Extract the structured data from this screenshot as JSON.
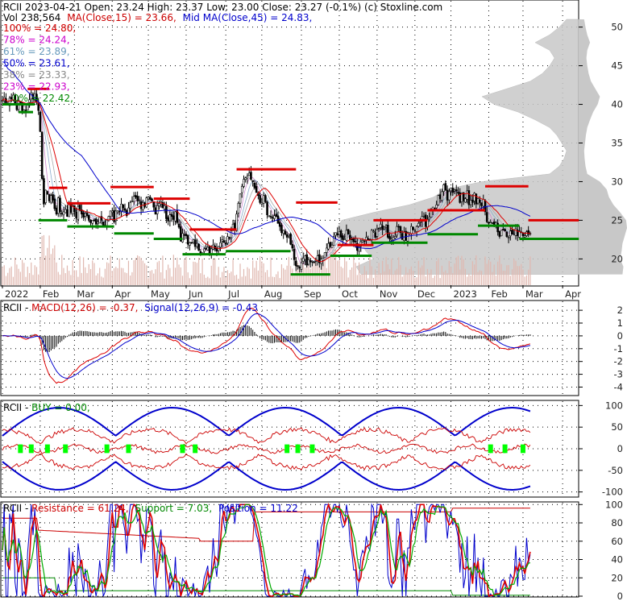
{
  "chart_data": {
    "type": "financial-panels",
    "main": {
      "header_line1": "RCII  2023-04-21 Open: 23.24  High: 23.37  Low: 23.00  Close: 23.27 (-0.1%) (c) Stoxline.com",
      "vol_text": "Vol 238,564",
      "ma15_text": "MA(Close,15) = 23.66,",
      "ma45_text": "Mid MA(Close,45) = 24.83,",
      "fib_levels": [
        {
          "label": "100% = 24.80,",
          "color": "#d40000"
        },
        {
          "label": "78% = 24.24,",
          "color": "#cc00cc"
        },
        {
          "label": "61% = 23.89,",
          "color": "#6699bb"
        },
        {
          "label": "50% = 23.61,",
          "color": "#0000cc"
        },
        {
          "label": "38% = 23.33,",
          "color": "#888888"
        },
        {
          "label": "23% = 22.93,",
          "color": "#cc00cc"
        },
        {
          "label": "0% = 22.42,",
          "color": "#008800"
        }
      ],
      "ylim": [
        16.6,
        53.4
      ],
      "y_ticks": [
        20,
        25,
        30,
        35,
        40,
        45,
        50
      ],
      "x_labels": [
        "2022",
        "Feb",
        "Mar",
        "Apr",
        "May",
        "Jun",
        "Jul",
        "Aug",
        "Sep",
        "Oct",
        "Nov",
        "Dec",
        "2023",
        "Feb",
        "Mar",
        "Apr"
      ],
      "x_label_pos": [
        0,
        21,
        40,
        61,
        81,
        102,
        124,
        144,
        166,
        187,
        208,
        229,
        249,
        270,
        289,
        311
      ],
      "n_days": 320,
      "close": [
        40.5,
        40.9,
        40.2,
        39.9,
        40.8,
        40.7,
        41.2,
        40.1,
        39.3,
        40.5,
        40.3,
        39.2,
        39.3,
        39.1,
        40.1,
        40.6,
        41.5,
        40.7,
        41.4,
        40.4,
        39.2,
        36.5,
        30.4,
        27.1,
        28.9,
        28.4,
        27.5,
        28.2,
        27.6,
        26.5,
        25.8,
        27.9,
        26.1,
        25.8,
        26.1,
        26.4,
        25.5,
        27.3,
        26.0,
        26.9,
        26.1,
        25.3,
        26.8,
        26.4,
        25.8,
        25.4,
        25.9,
        25.6,
        25.1,
        24.7,
        25.0,
        25.0,
        24.5,
        24.8,
        25.4,
        25.0,
        24.3,
        24.4,
        25.0,
        25.5,
        26.2,
        26.2,
        24.8,
        26.2,
        26.2,
        26.1,
        27.1,
        26.6,
        26.3,
        25.6,
        26.6,
        27.3,
        27.5,
        28.1,
        28.0,
        27.5,
        27.6,
        26.5,
        27.3,
        26.8,
        27.9,
        28.0,
        27.7,
        27.5,
        26.7,
        25.8,
        26.9,
        27.2,
        27.4,
        26.6,
        26.9,
        25.2,
        24.9,
        25.7,
        25.5,
        25.1,
        26.1,
        24.7,
        24.1,
        22.3,
        23.3,
        23.1,
        23.0,
        21.9,
        22.1,
        22.1,
        22.5,
        21.6,
        22.0,
        21.1,
        20.6,
        20.8,
        21.3,
        21.3,
        21.5,
        20.7,
        21.3,
        21.8,
        21.3,
        21.0,
        21.6,
        22.1,
        22.5,
        22.1,
        21.9,
        22.9,
        22.7,
        23.6,
        24.5,
        23.7,
        25.8,
        27.2,
        28.4,
        29.4,
        30.3,
        30.5,
        30.7,
        31.1,
        30.3,
        30.0,
        29.2,
        28.6,
        28.2,
        27.3,
        27.3,
        28.2,
        27.4,
        25.7,
        25.6,
        25.5,
        25.3,
        25.6,
        25.5,
        24.6,
        24.2,
        23.4,
        23.7,
        23.2,
        22.8,
        23.2,
        21.9,
        21.4,
        19.9,
        19.1,
        19.1,
        18.8,
        19.5,
        20.1,
        20.4,
        19.2,
        19.9,
        19.6,
        19.7,
        19.6,
        19.8,
        20.4,
        19.5,
        20.0,
        20.1,
        20.8,
        21.4,
        22.0,
        21.6,
        21.8,
        22.9,
        23.4,
        23.1,
        23.5,
        22.8,
        22.5,
        22.6,
        23.7,
        23.2,
        22.5,
        22.5,
        22.2,
        22.2,
        21.1,
        21.6,
        22.2,
        22.4,
        22.3,
        22.8,
        22.5,
        22.4,
        23.7,
        23.6,
        22.8,
        23.8,
        23.9,
        24.5,
        23.8,
        24.1,
        24.3,
        22.8,
        22.6,
        22.6,
        22.8,
        22.9,
        24.2,
        24.2,
        23.4,
        22.5,
        23.5,
        22.4,
        23.4,
        23.4,
        24.2,
        23.8,
        23.7,
        24.2,
        24.6,
        24.8,
        25.5,
        25.5,
        24.2,
        25.1,
        25.4,
        26.5,
        26.7,
        26.5,
        27.0,
        28.2,
        27.8,
        28.7,
        29.6,
        28.9,
        27.6,
        28.7,
        29.2,
        28.6,
        28.9,
        28.8,
        28.5,
        27.3,
        28.5,
        27.5,
        27.8,
        28.8,
        27.0,
        27.6,
        27.3,
        28.5,
        27.1,
        27.8,
        27.3,
        26.9,
        27.7,
        26.1,
        24.8,
        24.7,
        24.8,
        24.6,
        24.4,
        24.7,
        23.5,
        22.9,
        23.7,
        23.8,
        23.6,
        22.9,
        22.8,
        23.6,
        23.2,
        23.2,
        23.9,
        23.0,
        23.6,
        23.5,
        23.0,
        23.0,
        23.5,
        23.2,
        23.3
      ],
      "candle_every": 1,
      "support_segments": [
        {
          "x0": 0,
          "x1": 18,
          "y": 40.0
        },
        {
          "x0": 9,
          "x1": 17,
          "y": 39.0
        },
        {
          "x0": 20,
          "x1": 36,
          "y": 25.0
        },
        {
          "x0": 36,
          "x1": 62,
          "y": 24.2
        },
        {
          "x0": 62,
          "x1": 84,
          "y": 23.3
        },
        {
          "x0": 84,
          "x1": 100,
          "y": 22.6
        },
        {
          "x0": 100,
          "x1": 124,
          "y": 20.6
        },
        {
          "x0": 124,
          "x1": 160,
          "y": 21.0
        },
        {
          "x0": 160,
          "x1": 182,
          "y": 18.0
        },
        {
          "x0": 182,
          "x1": 205,
          "y": 20.4
        },
        {
          "x0": 205,
          "x1": 236,
          "y": 22.1
        },
        {
          "x0": 236,
          "x1": 264,
          "y": 23.2
        },
        {
          "x0": 264,
          "x1": 287,
          "y": 24.3
        },
        {
          "x0": 287,
          "x1": 320,
          "y": 22.6
        }
      ],
      "resistance_segments": [
        {
          "x0": 14,
          "x1": 26,
          "y": 42.0
        },
        {
          "x0": 26,
          "x1": 36,
          "y": 29.2
        },
        {
          "x0": 36,
          "x1": 60,
          "y": 27.2
        },
        {
          "x0": 60,
          "x1": 84,
          "y": 29.3
        },
        {
          "x0": 84,
          "x1": 104,
          "y": 27.8
        },
        {
          "x0": 104,
          "x1": 130,
          "y": 23.8
        },
        {
          "x0": 130,
          "x1": 163,
          "y": 31.6
        },
        {
          "x0": 163,
          "x1": 186,
          "y": 27.3
        },
        {
          "x0": 186,
          "x1": 206,
          "y": 21.8
        },
        {
          "x0": 206,
          "x1": 236,
          "y": 25.0
        },
        {
          "x0": 236,
          "x1": 268,
          "y": 26.3
        },
        {
          "x0": 268,
          "x1": 292,
          "y": 29.4
        },
        {
          "x0": 292,
          "x1": 320,
          "y": 25.0
        }
      ],
      "volume_profile": {
        "levels": [
          18,
          19,
          20,
          21,
          22,
          23,
          24,
          25,
          26,
          27,
          28,
          29,
          30,
          31,
          32,
          33,
          34,
          35,
          36,
          37,
          38,
          39,
          40,
          41,
          42,
          43,
          44,
          45,
          46,
          47,
          48,
          49,
          50,
          51
        ],
        "values": [
          0.9,
          0.92,
          0.85,
          0.88,
          0.9,
          0.95,
          1.0,
          0.98,
          0.85,
          0.7,
          0.6,
          0.55,
          0.4,
          0.12,
          0.08,
          0.06,
          0.05,
          0.07,
          0.09,
          0.12,
          0.18,
          0.25,
          0.35,
          0.4,
          0.3,
          0.2,
          0.15,
          0.12,
          0.1,
          0.12,
          0.18,
          0.12,
          0.08,
          0.05
        ]
      }
    },
    "macd": {
      "label_title": "RCII - ",
      "label_macd": "MACD(12,26) = -0.37,",
      "label_signal": "Signal(12,26,9) = -0.43",
      "ylim": [
        -4.6,
        2.7
      ],
      "y_ticks": [
        -4,
        -3,
        -2,
        -1,
        0,
        1,
        2
      ]
    },
    "buy": {
      "label_title": "RCII - ",
      "label_buy": "BUY = 0.00,",
      "ylim": [
        -110,
        110
      ],
      "y_ticks": [
        -100,
        -50,
        0,
        50,
        100
      ],
      "buy_signal_days": [
        10,
        16,
        25,
        35,
        58,
        70,
        100,
        107,
        158,
        164,
        172,
        271,
        279,
        289
      ]
    },
    "sr": {
      "label_title": "RCII - ",
      "label_res": "Resistance = 61.24,",
      "label_sup": "Support = 7.03,",
      "label_pos": "Position = 11.22",
      "ylim": [
        0,
        102
      ],
      "y_ticks": [
        0,
        20,
        40,
        60,
        80,
        100
      ]
    },
    "colors": {
      "red": "#dd0000",
      "green": "#008800",
      "blue": "#0000cc",
      "bright_green": "#00ff00",
      "grid": "#000000"
    }
  }
}
